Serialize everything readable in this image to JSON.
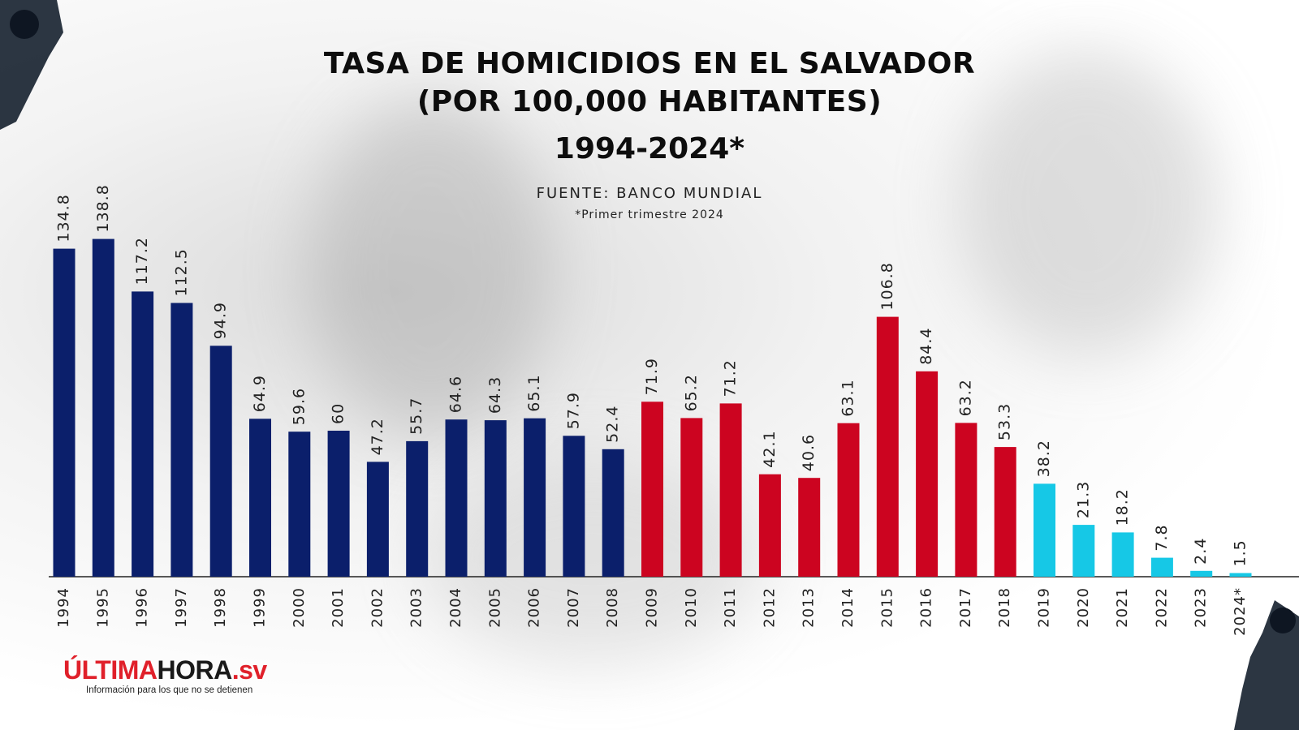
{
  "header": {
    "title_line1": "TASA DE HOMICIDIOS EN EL SALVADOR",
    "title_line2": "(POR 100,000 HABITANTES)",
    "title_line3": "1994-2024*",
    "source": "FUENTE: BANCO MUNDIAL",
    "note": "*Primer trimestre 2024"
  },
  "logo": {
    "part1": "ÚLTIMA",
    "part2": "HORA",
    "part3": ".sv",
    "tagline": "Información para los que no se detienen"
  },
  "colors": {
    "period1": "#0b1f6b",
    "period2": "#cc0420",
    "period3": "#16c8e6",
    "axis": "#222222"
  },
  "chart_data": {
    "type": "bar",
    "title": "TASA DE HOMICIDIOS EN EL SALVADOR (POR 100,000 HABITANTES) 1994-2024*",
    "categories": [
      "1994",
      "1995",
      "1996",
      "1997",
      "1998",
      "1999",
      "2000",
      "2001",
      "2002",
      "2003",
      "2004",
      "2005",
      "2006",
      "2007",
      "2008",
      "2009",
      "2010",
      "2011",
      "2012",
      "2013",
      "2014",
      "2015",
      "2016",
      "2017",
      "2018",
      "2019",
      "2020",
      "2021",
      "2022",
      "2023",
      "2024*"
    ],
    "values": [
      134.8,
      138.8,
      117.2,
      112.5,
      94.9,
      64.9,
      59.6,
      60,
      47.2,
      55.7,
      64.6,
      64.3,
      65.1,
      57.9,
      52.4,
      71.9,
      65.2,
      71.2,
      42.1,
      40.6,
      63.1,
      106.8,
      84.4,
      63.2,
      53.3,
      38.2,
      21.3,
      18.2,
      7.8,
      2.4,
      1.5
    ],
    "labels": [
      "134.8",
      "138.8",
      "117.2",
      "112.5",
      "94.9",
      "64.9",
      "59.6",
      "60",
      "47.2",
      "55.7",
      "64.6",
      "64.3",
      "65.1",
      "57.9",
      "52.4",
      "71.9",
      "65.2",
      "71.2",
      "42.1",
      "40.6",
      "63.1",
      "106.8",
      "84.4",
      "63.2",
      "53.3",
      "38.2",
      "21.3",
      "18.2",
      "7.8",
      "2.4",
      "1.5"
    ],
    "bar_color_groups": [
      "period1",
      "period1",
      "period1",
      "period1",
      "period1",
      "period1",
      "period1",
      "period1",
      "period1",
      "period1",
      "period1",
      "period1",
      "period1",
      "period1",
      "period1",
      "period2",
      "period2",
      "period2",
      "period2",
      "period2",
      "period2",
      "period2",
      "period2",
      "period2",
      "period2",
      "period3",
      "period3",
      "period3",
      "period3",
      "period3",
      "period3"
    ],
    "xlabel": "",
    "ylabel": "",
    "ylim": [
      0,
      140
    ],
    "grid": false,
    "legend": "none",
    "tick_label_rotation": "vertical",
    "value_label_rotation": "vertical"
  }
}
